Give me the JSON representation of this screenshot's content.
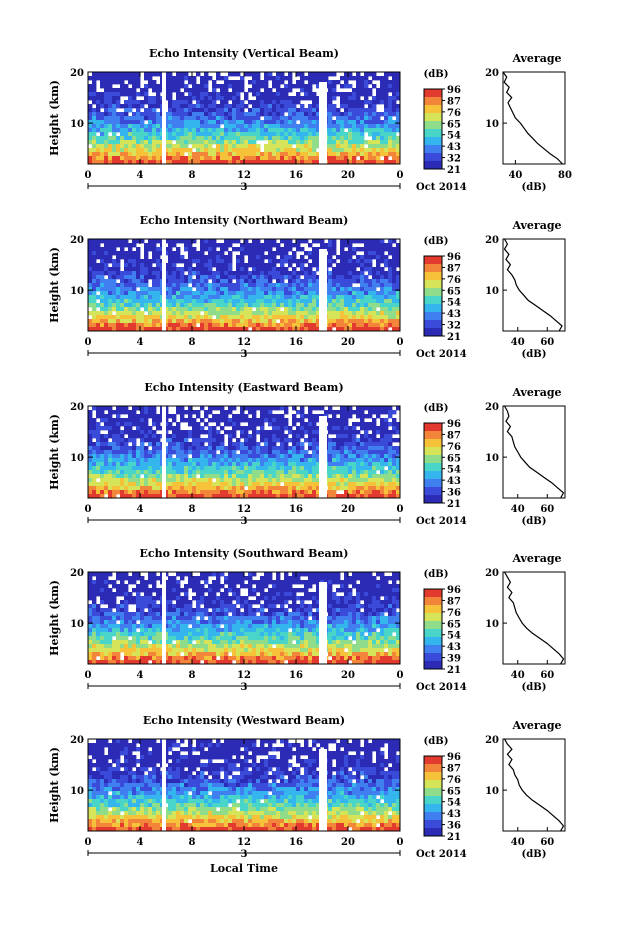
{
  "chart_data": [
    {
      "type": "heatmap",
      "title": "Echo Intensity (Vertical Beam)",
      "ylabel": "Height (km)",
      "x_ticks": [
        "0",
        "4",
        "8",
        "12",
        "16",
        "20",
        "0"
      ],
      "y_ticks": [
        "20",
        "10"
      ],
      "ylim": [
        2,
        20
      ],
      "date_labels": [
        "3",
        "Oct 2014"
      ],
      "colorbar": {
        "unit": "(dB)",
        "ticks": [
          "96",
          "87",
          "76",
          "65",
          "54",
          "43",
          "32",
          "21"
        ]
      },
      "profile": {
        "title": "Average",
        "xlabel": "(dB)",
        "x_ticks": [
          "40",
          "80"
        ],
        "xlim": [
          30,
          80
        ],
        "y_ticks": [
          "20",
          "10"
        ],
        "points": [
          [
            30,
            20
          ],
          [
            33,
            19
          ],
          [
            31,
            18
          ],
          [
            35,
            17
          ],
          [
            33,
            16
          ],
          [
            37,
            15
          ],
          [
            34,
            14
          ],
          [
            36,
            13
          ],
          [
            38,
            12
          ],
          [
            40,
            11
          ],
          [
            44,
            10
          ],
          [
            47,
            9
          ],
          [
            50,
            8
          ],
          [
            54,
            7
          ],
          [
            58,
            6
          ],
          [
            63,
            5
          ],
          [
            68,
            4
          ],
          [
            74,
            3
          ],
          [
            78,
            2
          ]
        ]
      }
    },
    {
      "type": "heatmap",
      "title": "Echo Intensity (Northward Beam)",
      "ylabel": "Height (km)",
      "x_ticks": [
        "0",
        "4",
        "8",
        "12",
        "16",
        "20",
        "0"
      ],
      "y_ticks": [
        "20",
        "10"
      ],
      "ylim": [
        2,
        20
      ],
      "date_labels": [
        "3",
        "Oct 2014"
      ],
      "colorbar": {
        "unit": "(dB)",
        "ticks": [
          "96",
          "87",
          "76",
          "65",
          "54",
          "43",
          "32",
          "21"
        ]
      },
      "profile": {
        "title": "Average",
        "xlabel": "(dB)",
        "x_ticks": [
          "40",
          "60"
        ],
        "xlim": [
          30,
          72
        ],
        "y_ticks": [
          "20",
          "10"
        ],
        "points": [
          [
            31,
            20
          ],
          [
            33,
            19
          ],
          [
            31,
            18
          ],
          [
            34,
            17
          ],
          [
            32,
            16
          ],
          [
            35,
            15
          ],
          [
            33,
            14
          ],
          [
            36,
            13
          ],
          [
            38,
            12
          ],
          [
            39,
            11
          ],
          [
            41,
            10
          ],
          [
            44,
            9
          ],
          [
            47,
            8
          ],
          [
            52,
            7
          ],
          [
            57,
            6
          ],
          [
            62,
            5
          ],
          [
            66,
            4
          ],
          [
            70,
            3
          ],
          [
            68,
            2
          ]
        ]
      }
    },
    {
      "type": "heatmap",
      "title": "Echo Intensity (Eastward Beam)",
      "ylabel": "Height (km)",
      "x_ticks": [
        "0",
        "4",
        "8",
        "12",
        "16",
        "20",
        "0"
      ],
      "y_ticks": [
        "20",
        "10"
      ],
      "ylim": [
        2,
        20
      ],
      "date_labels": [
        "3",
        "Oct 2014"
      ],
      "colorbar": {
        "unit": "(dB)",
        "ticks": [
          "96",
          "87",
          "76",
          "65",
          "54",
          "43",
          "36",
          "21"
        ]
      },
      "profile": {
        "title": "Average",
        "xlabel": "(dB)",
        "x_ticks": [
          "40",
          "60"
        ],
        "xlim": [
          30,
          72
        ],
        "y_ticks": [
          "20",
          "10"
        ],
        "points": [
          [
            31,
            20
          ],
          [
            33,
            19
          ],
          [
            34,
            18
          ],
          [
            32,
            17
          ],
          [
            35,
            16
          ],
          [
            33,
            15
          ],
          [
            36,
            14
          ],
          [
            37,
            13
          ],
          [
            38,
            12
          ],
          [
            40,
            11
          ],
          [
            42,
            10
          ],
          [
            45,
            9
          ],
          [
            48,
            8
          ],
          [
            53,
            7
          ],
          [
            58,
            6
          ],
          [
            63,
            5
          ],
          [
            67,
            4
          ],
          [
            71,
            3
          ],
          [
            69,
            2
          ]
        ]
      }
    },
    {
      "type": "heatmap",
      "title": "Echo Intensity (Southward Beam)",
      "ylabel": "Height (km)",
      "x_ticks": [
        "0",
        "4",
        "8",
        "12",
        "16",
        "20",
        "0"
      ],
      "y_ticks": [
        "20",
        "10"
      ],
      "ylim": [
        2,
        20
      ],
      "date_labels": [
        "3",
        "Oct 2014"
      ],
      "colorbar": {
        "unit": "(dB)",
        "ticks": [
          "96",
          "87",
          "76",
          "65",
          "54",
          "43",
          "39",
          "21"
        ]
      },
      "profile": {
        "title": "Average",
        "xlabel": "(dB)",
        "x_ticks": [
          "40",
          "60"
        ],
        "xlim": [
          30,
          72
        ],
        "y_ticks": [
          "20",
          "10"
        ],
        "points": [
          [
            31,
            20
          ],
          [
            33,
            19
          ],
          [
            35,
            18
          ],
          [
            33,
            17
          ],
          [
            36,
            16
          ],
          [
            34,
            15
          ],
          [
            37,
            14
          ],
          [
            38,
            13
          ],
          [
            39,
            12
          ],
          [
            41,
            11
          ],
          [
            43,
            10
          ],
          [
            46,
            9
          ],
          [
            50,
            8
          ],
          [
            55,
            7
          ],
          [
            60,
            6
          ],
          [
            64,
            5
          ],
          [
            68,
            4
          ],
          [
            71,
            3
          ],
          [
            69,
            2
          ]
        ]
      }
    },
    {
      "type": "heatmap",
      "title": "Echo Intensity (Westward Beam)",
      "ylabel": "Height (km)",
      "x_ticks": [
        "0",
        "4",
        "8",
        "12",
        "16",
        "20",
        "0"
      ],
      "y_ticks": [
        "20",
        "10"
      ],
      "ylim": [
        2,
        20
      ],
      "date_labels": [
        "3",
        "Oct 2014"
      ],
      "xlabel": "Local Time",
      "colorbar": {
        "unit": "(dB)",
        "ticks": [
          "96",
          "87",
          "76",
          "65",
          "54",
          "43",
          "36",
          "21"
        ]
      },
      "profile": {
        "title": "Average",
        "xlabel": "(dB)",
        "x_ticks": [
          "40",
          "60"
        ],
        "xlim": [
          30,
          72
        ],
        "y_ticks": [
          "20",
          "10"
        ],
        "points": [
          [
            31,
            20
          ],
          [
            33,
            19
          ],
          [
            36,
            18
          ],
          [
            33,
            17
          ],
          [
            36,
            16
          ],
          [
            34,
            15
          ],
          [
            37,
            14
          ],
          [
            38,
            13
          ],
          [
            40,
            12
          ],
          [
            41,
            11
          ],
          [
            43,
            10
          ],
          [
            46,
            9
          ],
          [
            50,
            8
          ],
          [
            55,
            7
          ],
          [
            60,
            6
          ],
          [
            64,
            5
          ],
          [
            68,
            4
          ],
          [
            71,
            3
          ],
          [
            69,
            2
          ]
        ]
      }
    }
  ]
}
